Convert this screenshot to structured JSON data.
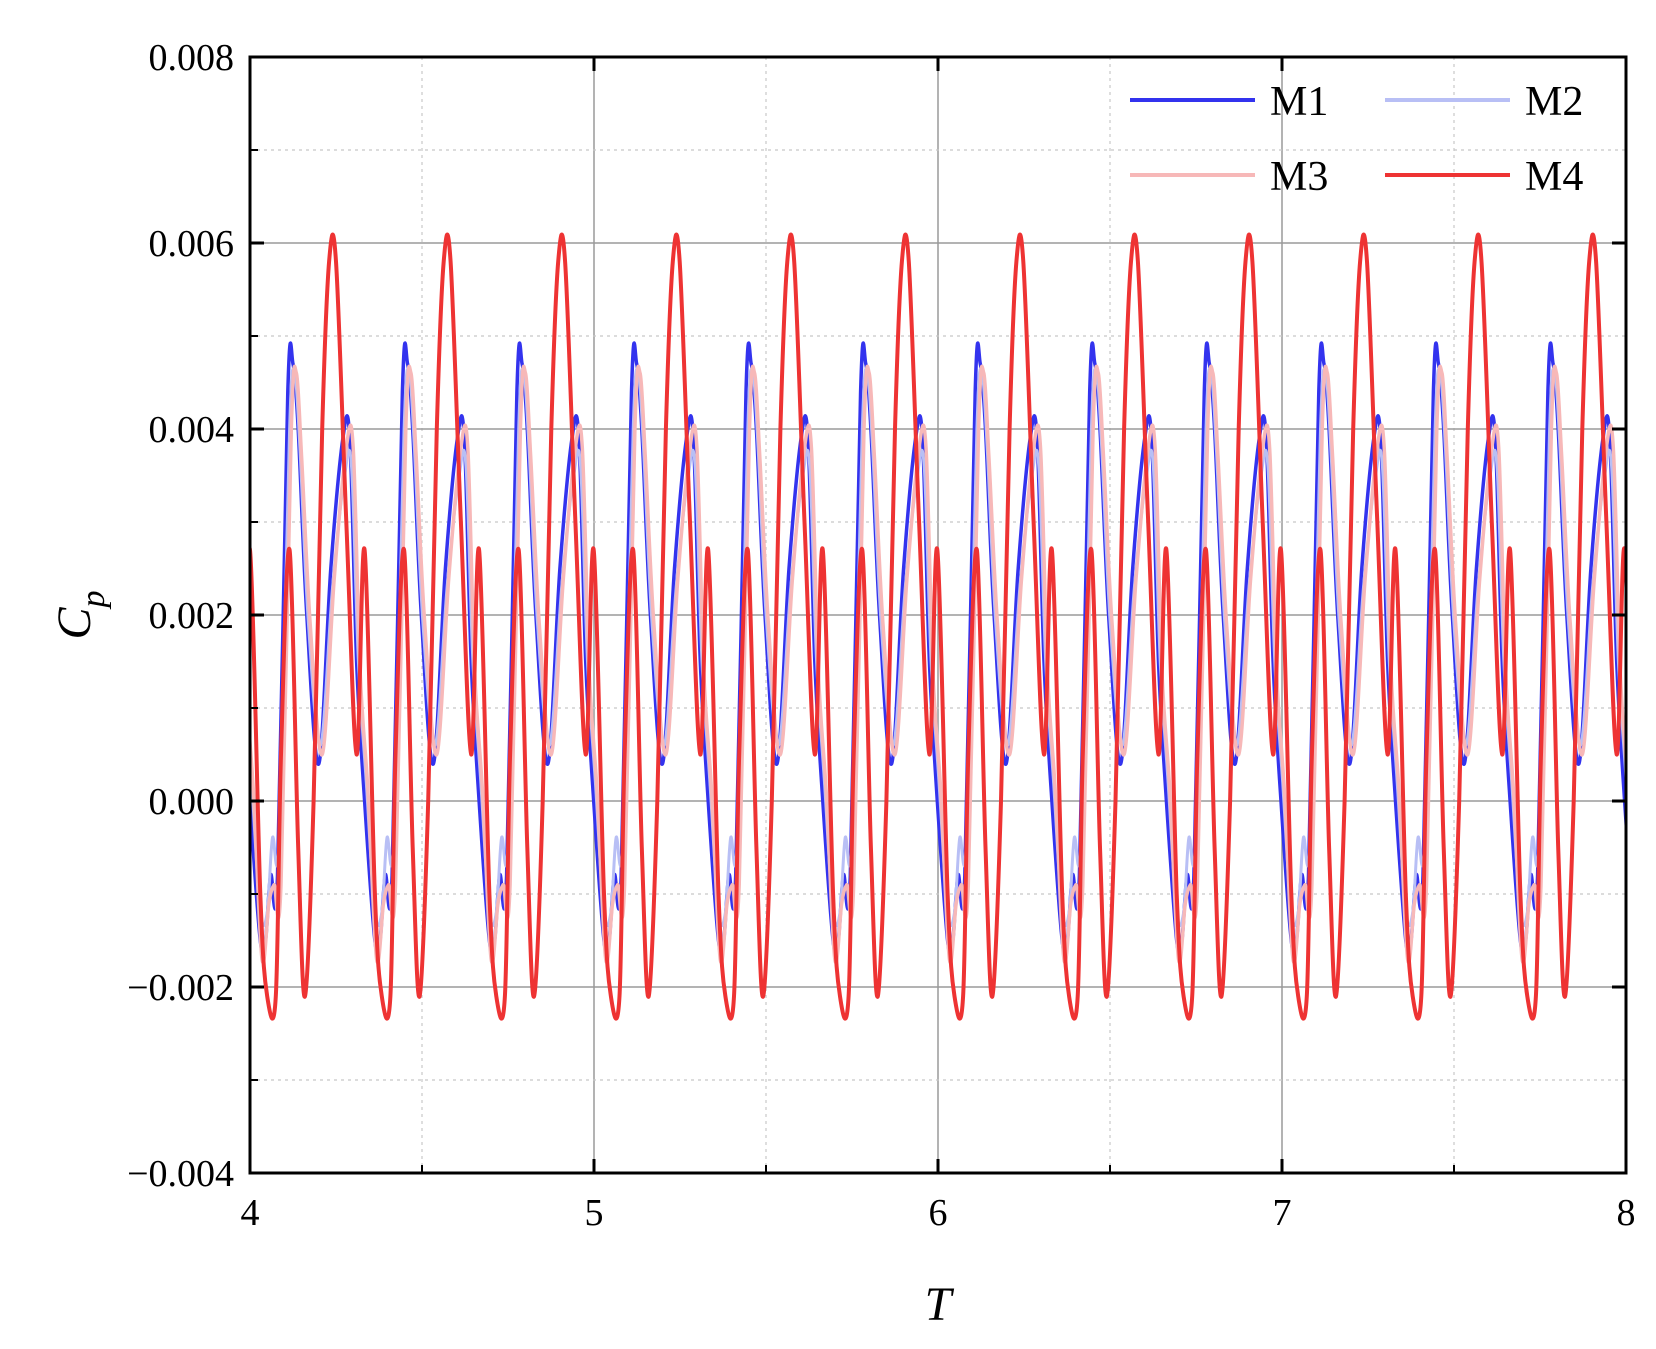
{
  "chart_data": {
    "type": "line",
    "title": "",
    "xlabel": "T",
    "ylabel": "C",
    "ylabel_subscript": "p",
    "xlim": [
      4,
      8
    ],
    "ylim": [
      -0.004,
      0.008
    ],
    "x_ticks": [
      4,
      5,
      6,
      7,
      8
    ],
    "x_tick_labels": [
      "4",
      "5",
      "6",
      "7",
      "8"
    ],
    "y_ticks": [
      -0.004,
      -0.002,
      0.0,
      0.002,
      0.004,
      0.006,
      0.008
    ],
    "y_tick_labels": [
      "−0.004",
      "−0.002",
      "0.000",
      "0.002",
      "0.004",
      "0.006",
      "0.008"
    ],
    "grid": "on",
    "legend_position": "top-right",
    "legend_columns": 2,
    "series": [
      {
        "name": "M1",
        "color": "#3333ee",
        "period": 0.333,
        "phase": 4.0,
        "keyframes": [
          [
            0.0,
            0.0
          ],
          [
            0.03,
            -0.0015
          ],
          [
            0.045,
            -0.0015
          ],
          [
            0.06,
            -0.0008
          ],
          [
            0.08,
            -0.0008
          ],
          [
            0.11,
            0.0044
          ],
          [
            0.125,
            0.0047
          ],
          [
            0.14,
            0.004
          ],
          [
            0.165,
            0.002
          ],
          [
            0.2,
            0.0004
          ],
          [
            0.235,
            0.0025
          ],
          [
            0.27,
            0.0039
          ],
          [
            0.29,
            0.0039
          ],
          [
            0.31,
            0.0015
          ],
          [
            0.333,
            0.0
          ]
        ]
      },
      {
        "name": "M2",
        "color": "#b8bff5",
        "period": 0.333,
        "phase": 4.005,
        "keyframes": [
          [
            0.0,
            0.0002
          ],
          [
            0.025,
            -0.0012
          ],
          [
            0.045,
            -0.0012
          ],
          [
            0.06,
            -0.0004
          ],
          [
            0.08,
            -0.0004
          ],
          [
            0.11,
            0.004
          ],
          [
            0.125,
            0.0046
          ],
          [
            0.14,
            0.0038
          ],
          [
            0.165,
            0.0019
          ],
          [
            0.2,
            0.0006
          ],
          [
            0.235,
            0.0023
          ],
          [
            0.27,
            0.0035
          ],
          [
            0.29,
            0.0036
          ],
          [
            0.31,
            0.0015
          ],
          [
            0.333,
            0.0002
          ]
        ]
      },
      {
        "name": "M3",
        "color": "#f7b8b8",
        "period": 0.333,
        "phase": 4.01,
        "keyframes": [
          [
            0.0,
            0.0001
          ],
          [
            0.025,
            -0.0017
          ],
          [
            0.045,
            -0.0011
          ],
          [
            0.06,
            -0.0009
          ],
          [
            0.08,
            -0.0009
          ],
          [
            0.11,
            0.004
          ],
          [
            0.125,
            0.0046
          ],
          [
            0.14,
            0.0037
          ],
          [
            0.165,
            0.0019
          ],
          [
            0.2,
            0.0005
          ],
          [
            0.235,
            0.0024
          ],
          [
            0.27,
            0.0038
          ],
          [
            0.29,
            0.0038
          ],
          [
            0.31,
            0.0014
          ],
          [
            0.333,
            0.0001
          ]
        ]
      },
      {
        "name": "M4",
        "color": "#ee3333",
        "period": 0.333,
        "phase": 4.0,
        "keyframes": [
          [
            0.0,
            0.0027
          ],
          [
            0.03,
            -0.001
          ],
          [
            0.05,
            -0.0021
          ],
          [
            0.075,
            -0.0021
          ],
          [
            0.09,
            0.0005
          ],
          [
            0.115,
            0.0027
          ],
          [
            0.14,
            -0.0005
          ],
          [
            0.16,
            -0.0021
          ],
          [
            0.185,
            0.0
          ],
          [
            0.21,
            0.004
          ],
          [
            0.23,
            0.0058
          ],
          [
            0.25,
            0.0058
          ],
          [
            0.28,
            0.003
          ],
          [
            0.31,
            0.0005
          ],
          [
            0.333,
            0.0027
          ]
        ]
      }
    ]
  }
}
